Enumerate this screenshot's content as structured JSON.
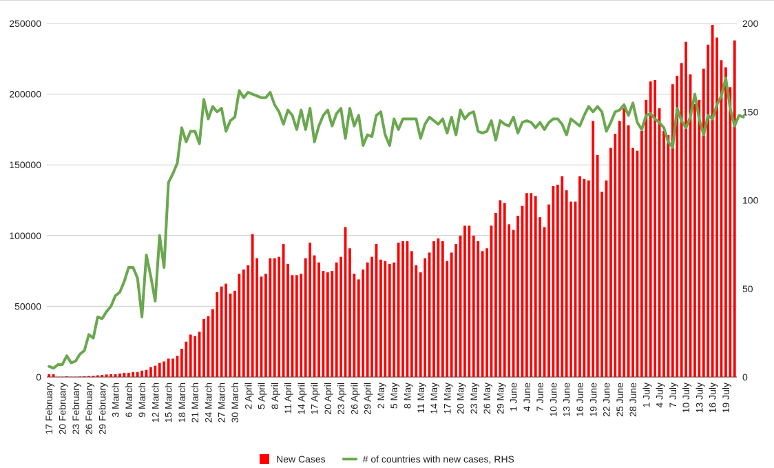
{
  "chart_data": {
    "type": "bar",
    "ylim_left": [
      0,
      250000
    ],
    "yticks_left": [
      "0",
      "50000",
      "100000",
      "150000",
      "200000",
      "250000"
    ],
    "ylim_right": [
      0,
      200
    ],
    "yticks_right": [
      "0",
      "50",
      "100",
      "150",
      "200"
    ],
    "grid": true,
    "legend_position": "bottom",
    "x_tick_labels": [
      "17 February",
      "20 February",
      "23 February",
      "26 February",
      "29 February",
      "3 March",
      "6 March",
      "9 March",
      "12 March",
      "15 March",
      "18 March",
      "21 March",
      "24 March",
      "27 March",
      "30 March",
      "2 April",
      "5 April",
      "8 April",
      "11 April",
      "14 April",
      "17 April",
      "20 April",
      "23 April",
      "26 April",
      "29 April",
      "2 May",
      "5 May",
      "8 May",
      "11 May",
      "14 May",
      "17 May",
      "20 May",
      "23 May",
      "26 May",
      "29 May",
      "1 June",
      "4 June",
      "7 June",
      "10 June",
      "13 June",
      "16 June",
      "19 June",
      "22 June",
      "25 June",
      "28 June",
      "1 July",
      "4 July",
      "7 July",
      "10 July",
      "13 July",
      "16 July",
      "19 July"
    ],
    "series": [
      {
        "name": "New Cases",
        "kind": "bar",
        "color": "#ff0000",
        "axis": "left",
        "values": [
          2000,
          2000,
          300,
          300,
          500,
          300,
          300,
          400,
          500,
          700,
          900,
          1200,
          1500,
          1800,
          2000,
          2000,
          2500,
          3000,
          3000,
          3500,
          3500,
          4500,
          5000,
          7000,
          8000,
          10000,
          11000,
          13000,
          13000,
          15000,
          20000,
          25000,
          30000,
          29000,
          32000,
          41000,
          43000,
          48000,
          60000,
          64000,
          66000,
          59000,
          61000,
          73000,
          76000,
          79000,
          101000,
          84000,
          71000,
          73000,
          84000,
          84000,
          85000,
          94000,
          80000,
          72000,
          72000,
          73000,
          84000,
          95000,
          86000,
          81000,
          75000,
          74000,
          75000,
          81000,
          85000,
          106000,
          91000,
          73000,
          69000,
          76000,
          81000,
          85000,
          94000,
          83000,
          82000,
          80000,
          81000,
          95000,
          96000,
          96000,
          89000,
          79000,
          74000,
          84000,
          88000,
          96000,
          98000,
          96000,
          82000,
          88000,
          94000,
          100000,
          107000,
          107000,
          100000,
          96000,
          89000,
          91000,
          107000,
          116000,
          125000,
          123000,
          108000,
          104000,
          114000,
          121000,
          130000,
          130000,
          128000,
          113000,
          106000,
          122000,
          135000,
          136000,
          142000,
          132000,
          124000,
          124000,
          142000,
          140000,
          139000,
          181000,
          157000,
          131000,
          139000,
          162000,
          172000,
          181000,
          190000,
          178000,
          162000,
          160000,
          174000,
          196000,
          209000,
          210000,
          190000,
          174000,
          171000,
          207000,
          213000,
          222000,
          237000,
          214000,
          193000,
          196000,
          218000,
          235000,
          249000,
          240000,
          224000,
          219000,
          205000,
          238000
        ]
      },
      {
        "name": "# of countries with new cases, RHS",
        "kind": "line",
        "color": "#6aa84f",
        "axis": "right",
        "values": [
          6,
          5,
          7,
          7,
          12,
          8,
          9,
          13,
          15,
          24,
          22,
          34,
          33,
          37,
          40,
          46,
          48,
          54,
          62,
          62,
          56,
          34,
          69,
          57,
          43,
          80,
          62,
          110,
          115,
          121,
          141,
          133,
          139,
          139,
          132,
          157,
          146,
          153,
          150,
          152,
          139,
          145,
          147,
          162,
          158,
          161,
          160,
          159,
          158,
          158,
          161,
          154,
          150,
          143,
          151,
          148,
          140,
          151,
          140,
          152,
          133,
          142,
          148,
          151,
          142,
          149,
          152,
          135,
          152,
          142,
          148,
          131,
          137,
          136,
          148,
          150,
          137,
          131,
          146,
          140,
          146,
          146,
          146,
          146,
          135,
          143,
          147,
          145,
          143,
          146,
          138,
          147,
          137,
          151,
          146,
          149,
          150,
          139,
          138,
          139,
          145,
          134,
          145,
          143,
          142,
          147,
          138,
          144,
          145,
          144,
          141,
          144,
          140,
          144,
          146,
          146,
          143,
          137,
          146,
          144,
          142,
          148,
          153,
          150,
          153,
          150,
          139,
          144,
          150,
          151,
          154,
          148,
          155,
          144,
          140,
          148,
          149,
          146,
          144,
          141,
          133,
          130,
          152,
          145,
          141,
          147,
          160,
          146,
          137,
          148,
          146,
          154,
          159,
          169,
          152,
          142,
          148,
          147
        ]
      }
    ]
  },
  "legend": {
    "items": [
      "New Cases",
      "# of countries with new cases, RHS"
    ]
  }
}
